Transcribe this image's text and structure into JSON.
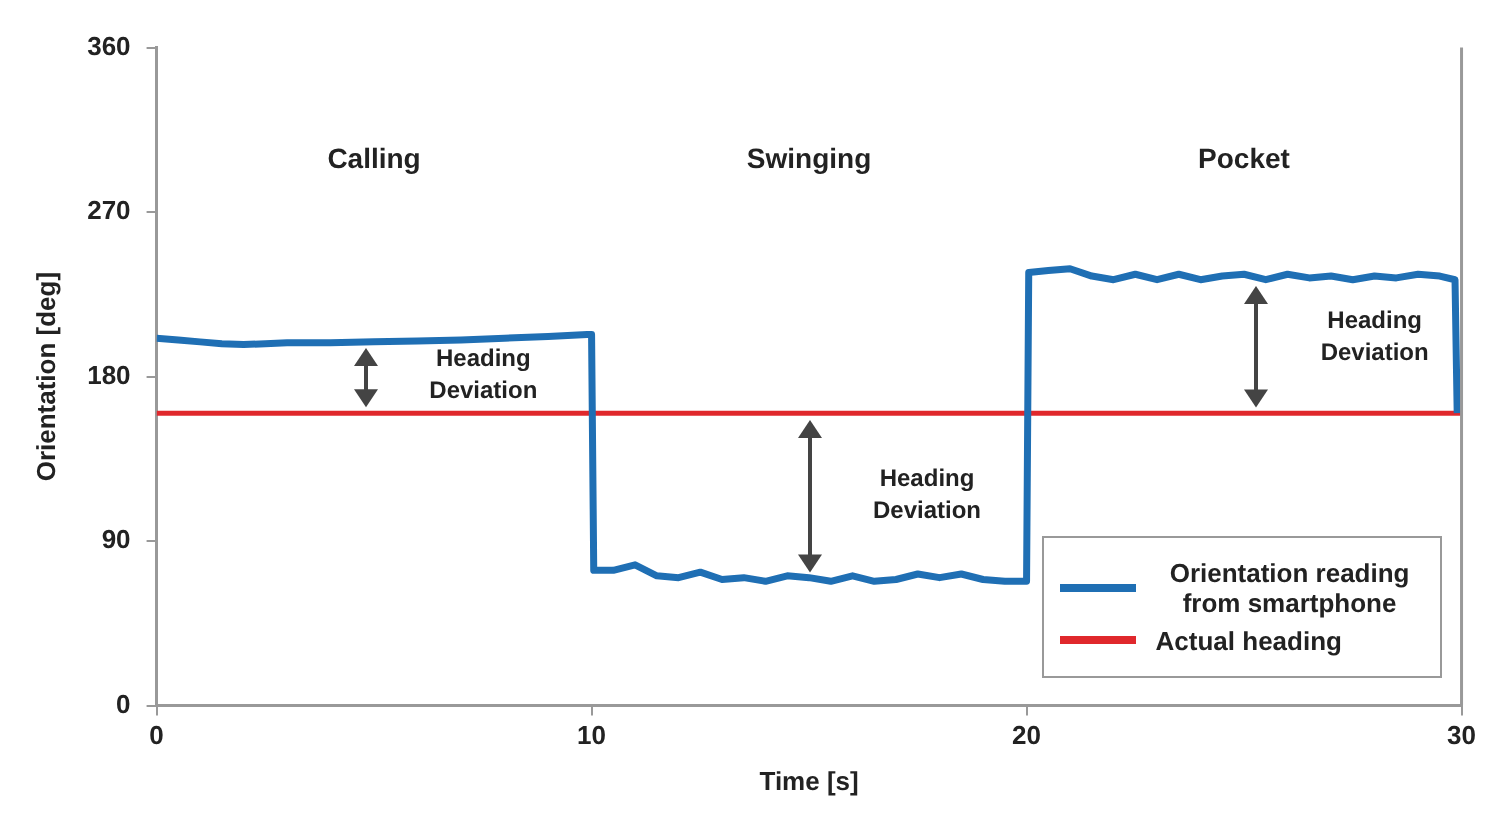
{
  "chart_data": {
    "type": "line",
    "xlabel": "Time [s]",
    "ylabel": "Orientation [deg]",
    "xlim": [
      0,
      30
    ],
    "xticks": [
      0,
      10,
      20,
      30
    ],
    "ylim": [
      0,
      360
    ],
    "yticks": [
      0,
      90,
      180,
      270,
      360
    ],
    "grid": false,
    "legend": "bottom right",
    "marker": "none",
    "line_style": "solid",
    "series": [
      {
        "name": "Orientation reading from smartphone",
        "color": "#1f6fb4",
        "x": [
          0,
          0.5,
          1,
          1.5,
          2,
          2.5,
          3,
          4,
          5,
          6,
          7,
          8,
          9,
          9.9,
          10,
          10.05,
          10.5,
          11,
          11.5,
          12,
          12.5,
          13,
          13.5,
          14,
          14.5,
          15,
          15.5,
          16,
          16.5,
          17,
          17.5,
          18,
          18.5,
          19,
          19.5,
          19.9,
          20,
          20.05,
          20.5,
          21,
          21.5,
          22,
          22.5,
          23,
          23.5,
          24,
          24.5,
          25,
          25.5,
          26,
          26.5,
          27,
          27.5,
          28,
          28.5,
          29,
          29.5,
          29.85,
          29.9
        ],
        "values": [
          201,
          200,
          199,
          198,
          197.5,
          198,
          198.5,
          198.5,
          199,
          199.5,
          200,
          201,
          202,
          203,
          203,
          74,
          74,
          77,
          71,
          70,
          73,
          69,
          70,
          68,
          71,
          70,
          68,
          71,
          68,
          69,
          72,
          70,
          72,
          69,
          68,
          68,
          68,
          237,
          238,
          239,
          235,
          233,
          236,
          233,
          236,
          233,
          235,
          236,
          233,
          236,
          234,
          235,
          233,
          235,
          234,
          236,
          235,
          233,
          160
        ]
      },
      {
        "name": "Actual heading",
        "color": "#e0282c",
        "x": [
          0,
          30
        ],
        "values": [
          160,
          160
        ]
      }
    ],
    "annotations": [
      "Calling",
      "Swinging",
      "Pocket",
      "Heading Deviation",
      "Heading Deviation",
      "Heading Deviation"
    ]
  }
}
